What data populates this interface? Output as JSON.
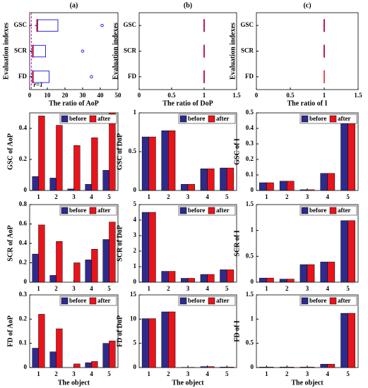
{
  "chart_data": [
    {
      "type": "box",
      "title": "(a)",
      "xlabel": "The ratio of AoP",
      "ylabel": "Evaluation indexes",
      "categories": [
        "GSC",
        "SCR",
        "FD"
      ],
      "boxes": [
        {
          "min": 3,
          "q1": 4,
          "median": 4.5,
          "q3": 16,
          "max": 16,
          "outliers": [
            41
          ]
        },
        {
          "min": 1,
          "q1": 1.5,
          "median": 2,
          "q3": 9,
          "max": 9,
          "outliers": [
            30
          ]
        },
        {
          "min": 1,
          "q1": 1.5,
          "median": 2,
          "q3": 11,
          "max": 11,
          "outliers": [
            35
          ]
        }
      ],
      "xlim": [
        0,
        50
      ],
      "xticks": [
        0,
        10,
        20,
        30,
        40,
        50
      ],
      "refline": 1,
      "annotation": "r=1",
      "box_color": "#2b2bd9",
      "median_color": "#e8141b",
      "refline_color": "#cc22cc"
    },
    {
      "type": "box",
      "title": "(b)",
      "xlabel": "The ratio of DoP",
      "ylabel": "Evaluation indexes",
      "categories": [
        "GSC",
        "SCR",
        "FD"
      ],
      "boxes": [
        {
          "min": 0.99,
          "q1": 0.995,
          "median": 1,
          "q3": 1.005,
          "max": 1.01,
          "outliers": []
        },
        {
          "min": 0.99,
          "q1": 0.995,
          "median": 1,
          "q3": 1.005,
          "max": 1.01,
          "outliers": []
        },
        {
          "min": 0.99,
          "q1": 0.995,
          "median": 1,
          "q3": 1.005,
          "max": 1.01,
          "outliers": []
        }
      ],
      "xlim": [
        0,
        1.5
      ],
      "xticks": [
        0,
        0.5,
        1,
        1.5
      ],
      "box_color": "#2b2bd9",
      "median_color": "#e8141b"
    },
    {
      "type": "box",
      "title": "(c)",
      "xlabel": "The ratio of I",
      "ylabel": "Evaluation indexes",
      "categories": [
        "GSC",
        "SCR",
        "FD"
      ],
      "boxes": [
        {
          "min": 0.99,
          "q1": 0.995,
          "median": 1,
          "q3": 1.005,
          "max": 1.01,
          "outliers": []
        },
        {
          "min": 0.99,
          "q1": 0.995,
          "median": 1,
          "q3": 1.005,
          "max": 1.01,
          "outliers": []
        },
        {
          "min": 1,
          "q1": 1,
          "median": 1,
          "q3": 1,
          "max": 1,
          "outliers": []
        }
      ],
      "xlim": [
        0,
        1.5
      ],
      "xticks": [
        0,
        0.5,
        1,
        1.5
      ],
      "box_color": "#2b2bd9",
      "median_color": "#e8141b"
    },
    {
      "type": "bar",
      "ylabel": "GSC of AoP",
      "categories": [
        "1",
        "2",
        "3",
        "4",
        "5"
      ],
      "series": [
        {
          "name": "before",
          "color": "#2e2b8c",
          "values": [
            0.09,
            0.08,
            0.01,
            0.04,
            0.13
          ]
        },
        {
          "name": "after",
          "color": "#e8141b",
          "values": [
            0.48,
            0.42,
            0.29,
            0.34,
            0.5
          ]
        }
      ],
      "ylim": [
        0,
        0.5
      ],
      "yticks": [
        0,
        0.2,
        0.4
      ],
      "legend": "upper right"
    },
    {
      "type": "bar",
      "ylabel": "GSC of DoP",
      "categories": [
        "1",
        "2",
        "3",
        "4",
        "5"
      ],
      "series": [
        {
          "name": "before",
          "color": "#2e2b8c",
          "values": [
            0.69,
            0.77,
            0.08,
            0.28,
            0.29
          ]
        },
        {
          "name": "after",
          "color": "#e8141b",
          "values": [
            0.69,
            0.77,
            0.08,
            0.28,
            0.29
          ]
        }
      ],
      "ylim": [
        0,
        1
      ],
      "yticks": [
        0,
        0.5,
        1
      ],
      "legend": "upper right"
    },
    {
      "type": "bar",
      "ylabel": "GSC of I",
      "categories": [
        "1",
        "2",
        "3",
        "4",
        "5"
      ],
      "series": [
        {
          "name": "before",
          "color": "#2e2b8c",
          "values": [
            0.05,
            0.06,
            0.005,
            0.11,
            0.46
          ]
        },
        {
          "name": "after",
          "color": "#e8141b",
          "values": [
            0.05,
            0.06,
            0.005,
            0.11,
            0.46
          ]
        }
      ],
      "ylim": [
        0,
        0.5
      ],
      "yticks": [
        0,
        0.1,
        0.2,
        0.3,
        0.4,
        0.5
      ],
      "legend": "upper right"
    },
    {
      "type": "bar",
      "ylabel": "SCR of AoP",
      "categories": [
        "1",
        "2",
        "3",
        "4",
        "5"
      ],
      "series": [
        {
          "name": "before",
          "color": "#2e2b8c",
          "values": [
            0.29,
            0.07,
            0.0,
            0.23,
            0.44
          ]
        },
        {
          "name": "after",
          "color": "#e8141b",
          "values": [
            0.59,
            0.42,
            0.2,
            0.34,
            0.62
          ]
        }
      ],
      "ylim": [
        0,
        0.8
      ],
      "yticks": [
        0,
        0.2,
        0.4,
        0.6,
        0.8
      ],
      "legend": "upper right"
    },
    {
      "type": "bar",
      "ylabel": "SCR of DoP",
      "categories": [
        "1",
        "2",
        "3",
        "4",
        "5"
      ],
      "series": [
        {
          "name": "before",
          "color": "#2e2b8c",
          "values": [
            4.5,
            0.7,
            0.25,
            0.5,
            0.8
          ]
        },
        {
          "name": "after",
          "color": "#e8141b",
          "values": [
            4.5,
            0.7,
            0.25,
            0.5,
            0.8
          ]
        }
      ],
      "ylim": [
        0,
        5
      ],
      "yticks": [
        0,
        1,
        2,
        3,
        4,
        5
      ],
      "legend": "upper right"
    },
    {
      "type": "bar",
      "ylabel": "SCR of I",
      "categories": [
        "1",
        "2",
        "3",
        "4",
        "5"
      ],
      "series": [
        {
          "name": "before",
          "color": "#2e2b8c",
          "values": [
            0.08,
            0.06,
            0.34,
            0.39,
            1.19
          ]
        },
        {
          "name": "after",
          "color": "#e8141b",
          "values": [
            0.08,
            0.06,
            0.34,
            0.39,
            1.19
          ]
        }
      ],
      "ylim": [
        0,
        1.5
      ],
      "yticks": [
        0,
        0.5,
        1,
        1.5
      ],
      "legend": "upper right"
    },
    {
      "type": "bar",
      "ylabel": "FD of AoP",
      "xlabel": "The object",
      "categories": [
        "1",
        "2",
        "3",
        "4",
        "5"
      ],
      "series": [
        {
          "name": "before",
          "color": "#2e2b8c",
          "values": [
            0.08,
            0.065,
            0.0,
            0.02,
            0.1
          ]
        },
        {
          "name": "after",
          "color": "#e8141b",
          "values": [
            0.22,
            0.16,
            0.015,
            0.025,
            0.11
          ]
        }
      ],
      "ylim": [
        0,
        0.3
      ],
      "yticks": [
        0,
        0.1,
        0.2,
        0.3
      ],
      "legend": "upper right"
    },
    {
      "type": "bar",
      "ylabel": "FD of DoP",
      "xlabel": "The object",
      "categories": [
        "1",
        "2",
        "3",
        "4",
        "5"
      ],
      "series": [
        {
          "name": "before",
          "color": "#2e2b8c",
          "values": [
            10.1,
            11.5,
            0.05,
            0.2,
            0.1
          ]
        },
        {
          "name": "after",
          "color": "#e8141b",
          "values": [
            10.1,
            11.5,
            0.05,
            0.2,
            0.1
          ]
        }
      ],
      "ylim": [
        0,
        15
      ],
      "yticks": [
        0,
        5,
        10,
        15
      ],
      "legend": "upper right"
    },
    {
      "type": "bar",
      "ylabel": "FD of I",
      "xlabel": "The object",
      "categories": [
        "1",
        "2",
        "3",
        "4",
        "5"
      ],
      "series": [
        {
          "name": "before",
          "color": "#2e2b8c",
          "values": [
            0.01,
            0.01,
            0.01,
            0.07,
            1.12
          ]
        },
        {
          "name": "after",
          "color": "#e8141b",
          "values": [
            0.01,
            0.01,
            0.01,
            0.07,
            1.12
          ]
        }
      ],
      "ylim": [
        0,
        1.5
      ],
      "yticks": [
        0,
        0.5,
        1,
        1.5
      ],
      "legend": "upper right"
    }
  ]
}
